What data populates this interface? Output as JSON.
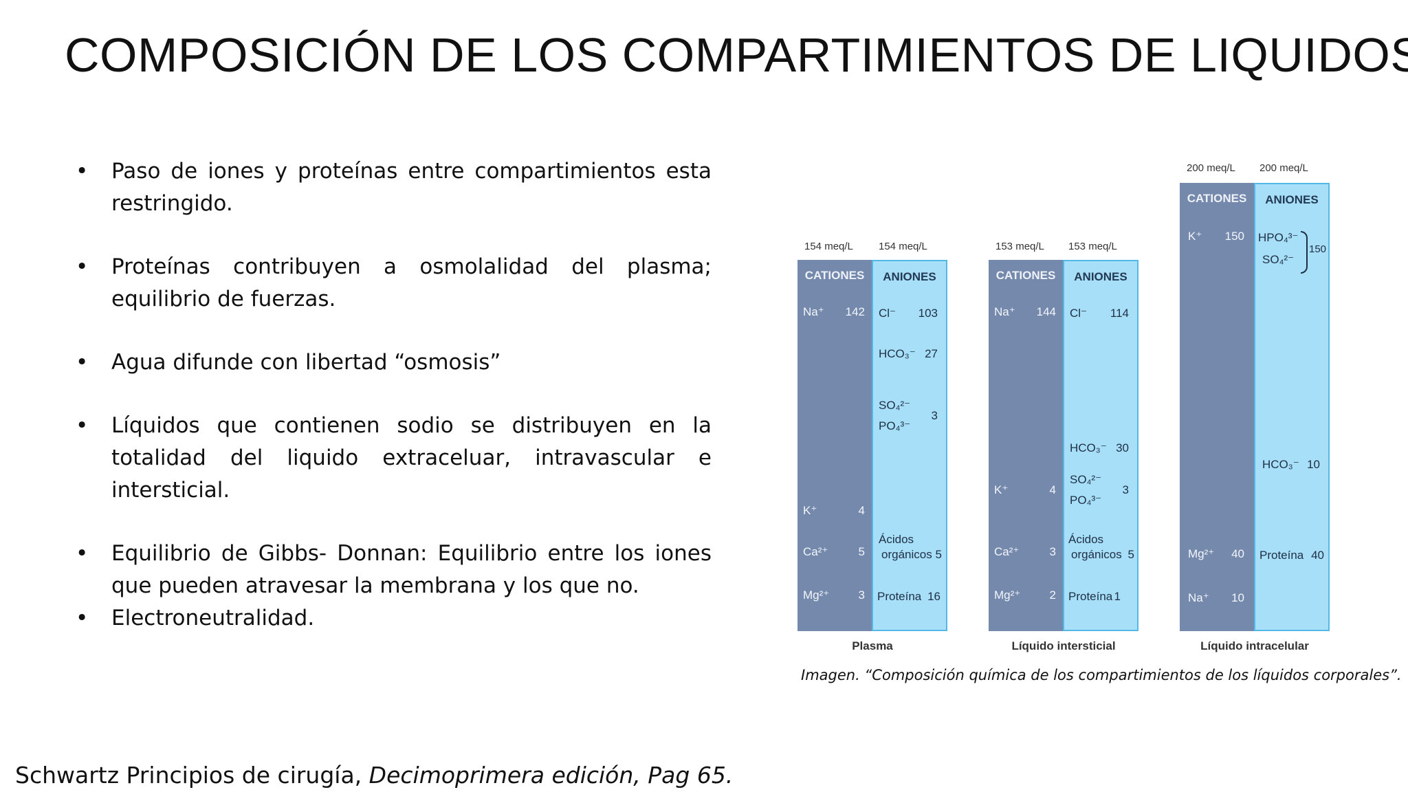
{
  "title": "COMPOSICIÓN DE LOS COMPARTIMIENTOS DE LIQUIDOS",
  "bullets": [
    "Paso de iones y proteínas entre compartimientos esta restringido.",
    "Proteínas contribuyen a osmolalidad del plasma; equilibrio de fuerzas.",
    "Agua difunde con libertad “osmosis”",
    "Líquidos que contienen sodio se distribuyen en la totalidad del liquido extraceluar, intravascular e intersticial.",
    "Equilibrio de Gibbs- Donnan: Equilibrio entre los iones que pueden atravesar la membrana y los que no.",
    "Electroneutralidad."
  ],
  "figure": {
    "headers": {
      "cations": "CATIONES",
      "anions": "ANIONES"
    },
    "plasma": {
      "name": "Plasma",
      "cat_meq": "154 meq/L",
      "ani_meq": "154 meq/L",
      "cations": [
        {
          "ion": "Na⁺",
          "val": "142"
        },
        {
          "ion": "K⁺",
          "val": "4"
        },
        {
          "ion": "Ca²⁺",
          "val": "5"
        },
        {
          "ion": "Mg²⁺",
          "val": "3"
        }
      ],
      "anions": [
        {
          "ion": "Cl⁻",
          "val": "103"
        },
        {
          "ion": "HCO₃⁻",
          "val": "27"
        },
        {
          "ion": "SO₄²⁻",
          "val": ""
        },
        {
          "ion": "PO₄³⁻",
          "val": ""
        },
        {
          "ion": "",
          "val": "3"
        },
        {
          "ion": "Ácidos",
          "val": ""
        },
        {
          "ion": "orgánicos",
          "val": "5"
        },
        {
          "ion": "Proteína",
          "val": "16"
        }
      ]
    },
    "interstitial": {
      "name": "Líquido intersticial",
      "cat_meq": "153 meq/L",
      "ani_meq": "153 meq/L",
      "cations": [
        {
          "ion": "Na⁺",
          "val": "144"
        },
        {
          "ion": "K⁺",
          "val": "4"
        },
        {
          "ion": "Ca²⁺",
          "val": "3"
        },
        {
          "ion": "Mg²⁺",
          "val": "2"
        }
      ],
      "anions": [
        {
          "ion": "Cl⁻",
          "val": "114"
        },
        {
          "ion": "HCO₃⁻",
          "val": "30"
        },
        {
          "ion": "SO₄²⁻",
          "val": ""
        },
        {
          "ion": "PO₄³⁻",
          "val": ""
        },
        {
          "ion": "",
          "val": "3"
        },
        {
          "ion": "Ácidos",
          "val": ""
        },
        {
          "ion": "orgánicos",
          "val": "5"
        },
        {
          "ion": "Proteína",
          "val": "1"
        }
      ]
    },
    "intracellular": {
      "name": "Líquido intracelular",
      "cat_meq": "200 meq/L",
      "ani_meq": "200 meq/L",
      "cations": [
        {
          "ion": "K⁺",
          "val": "150"
        },
        {
          "ion": "Mg²⁺",
          "val": "40"
        },
        {
          "ion": "Na⁺",
          "val": "10"
        }
      ],
      "anions": [
        {
          "ion": "HPO₄³⁻",
          "val": ""
        },
        {
          "ion": "SO₄²⁻",
          "val": ""
        },
        {
          "ion": "",
          "val": "150"
        },
        {
          "ion": "HCO₃⁻",
          "val": "10"
        },
        {
          "ion": "Proteína",
          "val": "40"
        }
      ]
    }
  },
  "caption": "Imagen. “Composición química de los compartimientos de los líquidos corporales”.",
  "source": {
    "plain": "Schwartz Principios de cirugía, ",
    "italic": "Decimoprimera edición, Pag 65."
  }
}
